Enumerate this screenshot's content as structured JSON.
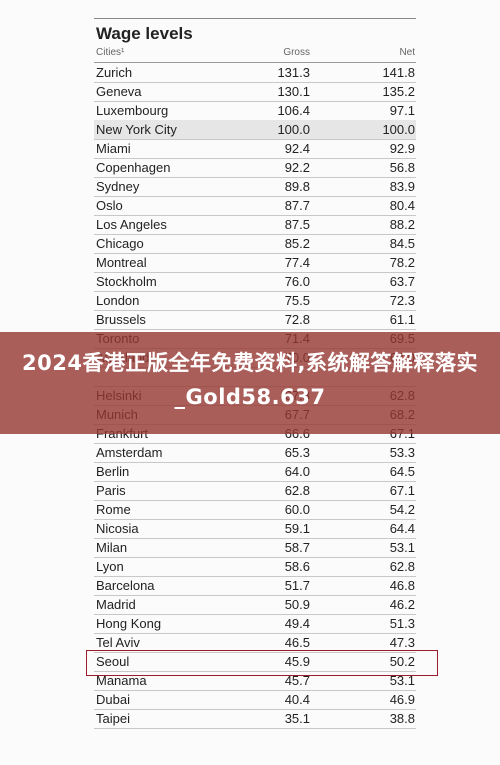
{
  "table": {
    "title": "Wage levels",
    "headers": {
      "city": "Cities¹",
      "gross": "Gross",
      "net": "Net"
    },
    "rows": [
      {
        "city": "Zurich",
        "gross": "131.3",
        "net": "141.8",
        "shaded": false
      },
      {
        "city": "Geneva",
        "gross": "130.1",
        "net": "135.2",
        "shaded": false
      },
      {
        "city": "Luxembourg",
        "gross": "106.4",
        "net": "97.1",
        "shaded": false
      },
      {
        "city": "New York City",
        "gross": "100.0",
        "net": "100.0",
        "shaded": true
      },
      {
        "city": "Miami",
        "gross": "92.4",
        "net": "92.9",
        "shaded": false
      },
      {
        "city": "Copenhagen",
        "gross": "92.2",
        "net": "56.8",
        "shaded": false
      },
      {
        "city": "Sydney",
        "gross": "89.8",
        "net": "83.9",
        "shaded": false
      },
      {
        "city": "Oslo",
        "gross": "87.7",
        "net": "80.4",
        "shaded": false
      },
      {
        "city": "Los Angeles",
        "gross": "87.5",
        "net": "88.2",
        "shaded": false
      },
      {
        "city": "Chicago",
        "gross": "85.2",
        "net": "84.5",
        "shaded": false
      },
      {
        "city": "Montreal",
        "gross": "77.4",
        "net": "78.2",
        "shaded": false
      },
      {
        "city": "Stockholm",
        "gross": "76.0",
        "net": "63.7",
        "shaded": false
      },
      {
        "city": "London",
        "gross": "75.5",
        "net": "72.3",
        "shaded": false
      },
      {
        "city": "Brussels",
        "gross": "72.8",
        "net": "61.1",
        "shaded": false
      },
      {
        "city": "Toronto",
        "gross": "71.4",
        "net": "69.5",
        "shaded": false
      },
      {
        "city": "Auckland",
        "gross": "70.0",
        "net": "68.0",
        "shaded": false
      },
      {
        "city": "",
        "gross": "",
        "net": "",
        "shaded": false
      },
      {
        "city": "Helsinki",
        "gross": "67.8",
        "net": "62.8",
        "shaded": false
      },
      {
        "city": "Munich",
        "gross": "67.7",
        "net": "68.2",
        "shaded": false
      },
      {
        "city": "Frankfurt",
        "gross": "66.6",
        "net": "67.1",
        "shaded": false
      },
      {
        "city": "Amsterdam",
        "gross": "65.3",
        "net": "53.3",
        "shaded": false
      },
      {
        "city": "Berlin",
        "gross": "64.0",
        "net": "64.5",
        "shaded": false
      },
      {
        "city": "Paris",
        "gross": "62.8",
        "net": "67.1",
        "shaded": false
      },
      {
        "city": "Rome",
        "gross": "60.0",
        "net": "54.2",
        "shaded": false
      },
      {
        "city": "Nicosia",
        "gross": "59.1",
        "net": "64.4",
        "shaded": false
      },
      {
        "city": "Milan",
        "gross": "58.7",
        "net": "53.1",
        "shaded": false
      },
      {
        "city": "Lyon",
        "gross": "58.6",
        "net": "62.8",
        "shaded": false
      },
      {
        "city": "Barcelona",
        "gross": "51.7",
        "net": "46.8",
        "shaded": false
      },
      {
        "city": "Madrid",
        "gross": "50.9",
        "net": "46.2",
        "shaded": false
      },
      {
        "city": "Hong Kong",
        "gross": "49.4",
        "net": "51.3",
        "shaded": false
      },
      {
        "city": "Tel Aviv",
        "gross": "46.5",
        "net": "47.3",
        "shaded": false
      },
      {
        "city": "Seoul",
        "gross": "45.9",
        "net": "50.2",
        "shaded": false
      },
      {
        "city": "Manama",
        "gross": "45.7",
        "net": "53.1",
        "shaded": false
      },
      {
        "city": "Dubai",
        "gross": "40.4",
        "net": "46.9",
        "shaded": false
      },
      {
        "city": "Taipei",
        "gross": "35.1",
        "net": "38.8",
        "shaded": false
      }
    ]
  },
  "banner": {
    "text": "2024香港正版全年免费资料,系统解答解释落实_Gold58.637"
  },
  "colors": {
    "highlight_box": "#9b1c2e",
    "banner_bg": "#96372f"
  }
}
